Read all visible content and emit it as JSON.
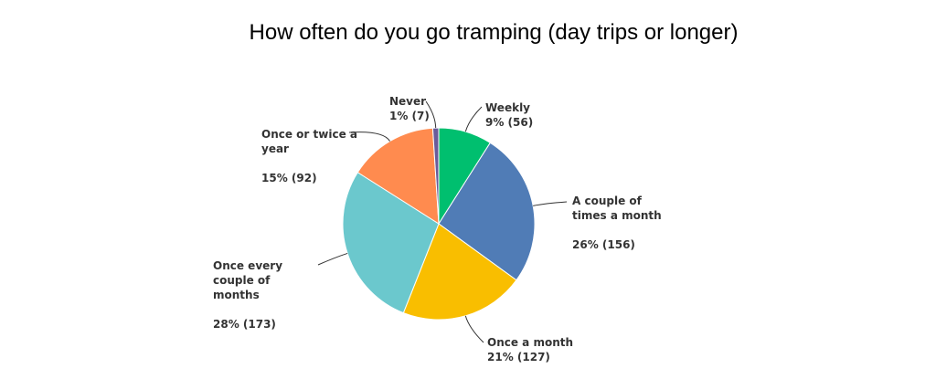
{
  "chart_data": {
    "type": "pie",
    "title": "How often do you go tramping (day trips or longer)",
    "categories": [
      "Weekly",
      "A couple of times a month",
      "Once a month",
      "Once every couple of months",
      "Once or twice a year",
      "Never"
    ],
    "values": [
      9,
      26,
      21,
      28,
      15,
      1
    ],
    "value_labels": [
      "9% (56)",
      "26% (156)",
      "21% (127)",
      "28% (173)",
      "15% (92)",
      "1% (7)"
    ],
    "colors": [
      "#00bf6f",
      "#507cb6",
      "#f9be00",
      "#6bc8cd",
      "#ff8b4f",
      "#6a5b9a"
    ]
  }
}
